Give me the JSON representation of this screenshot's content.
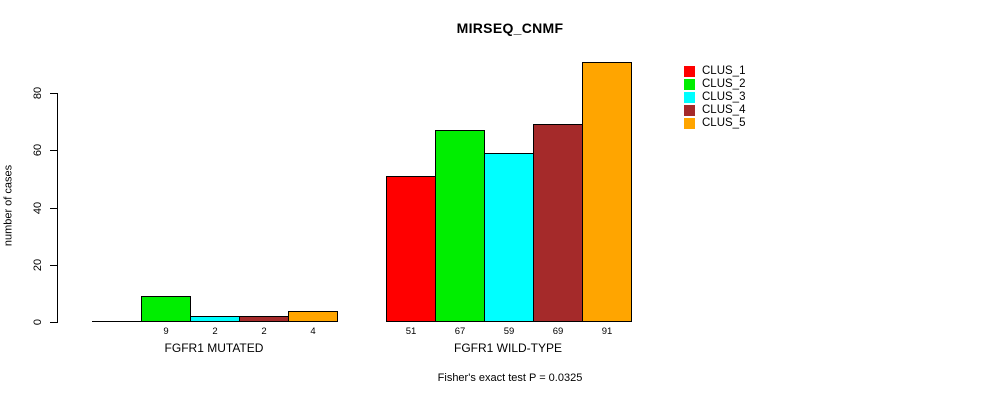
{
  "title": "MIRSEQ_CNMF",
  "chart_data": {
    "type": "bar",
    "title": "MIRSEQ_CNMF",
    "xlabel": "",
    "ylabel": "number of cases",
    "ylim": [
      0,
      92
    ],
    "yticks": [
      0,
      20,
      40,
      60,
      80
    ],
    "grid": false,
    "legend_position": "right-outside",
    "bar_value_labels": true,
    "groups": [
      "FGFR1 MUTATED",
      "FGFR1 WILD-TYPE"
    ],
    "series": [
      {
        "name": "CLUS_1",
        "color": "#FF0000",
        "values": [
          0,
          51
        ]
      },
      {
        "name": "CLUS_2",
        "color": "#00EE00",
        "values": [
          9,
          67
        ]
      },
      {
        "name": "CLUS_3",
        "color": "#00FFFF",
        "values": [
          2,
          59
        ]
      },
      {
        "name": "CLUS_4",
        "color": "#A52A2A",
        "values": [
          2,
          69
        ]
      },
      {
        "name": "CLUS_5",
        "color": "#FFA500",
        "values": [
          4,
          91
        ]
      }
    ],
    "annotation": "Fisher's exact test P = 0.0325"
  }
}
